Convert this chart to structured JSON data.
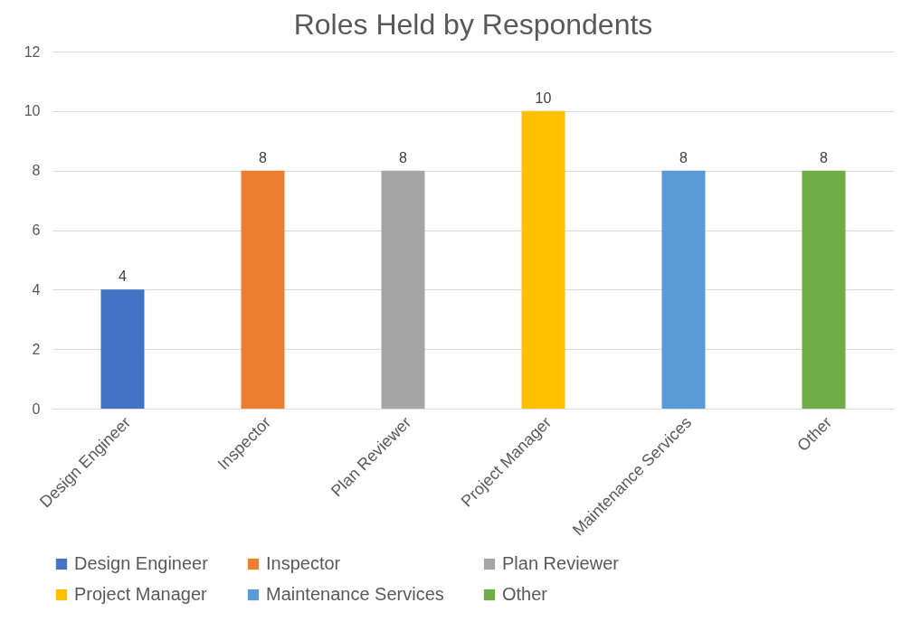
{
  "chart_data": {
    "type": "bar",
    "title": "Roles Held by Respondents",
    "categories": [
      "Design Engineer",
      "Inspector",
      "Plan Reviewer",
      "Project Manager",
      "Maintenance Services",
      "Other"
    ],
    "series": [
      {
        "name": "Design Engineer",
        "color": "#4472c4",
        "values": [
          4,
          null,
          null,
          null,
          null,
          null
        ]
      },
      {
        "name": "Inspector",
        "color": "#ed7d31",
        "values": [
          null,
          8,
          null,
          null,
          null,
          null
        ]
      },
      {
        "name": "Plan Reviewer",
        "color": "#a5a5a5",
        "values": [
          null,
          null,
          8,
          null,
          null,
          null
        ]
      },
      {
        "name": "Project Manager",
        "color": "#ffc000",
        "values": [
          null,
          null,
          null,
          10,
          null,
          null
        ]
      },
      {
        "name": "Maintenance Services",
        "color": "#5b9bd5",
        "values": [
          null,
          null,
          null,
          null,
          8,
          null
        ]
      },
      {
        "name": "Other",
        "color": "#70ad47",
        "values": [
          null,
          null,
          null,
          null,
          null,
          8
        ]
      }
    ],
    "ylim": [
      0,
      12
    ],
    "yticks": [
      0,
      2,
      4,
      6,
      8,
      10,
      12
    ],
    "grid": "y",
    "legend": "bottom",
    "data_labels": true
  }
}
